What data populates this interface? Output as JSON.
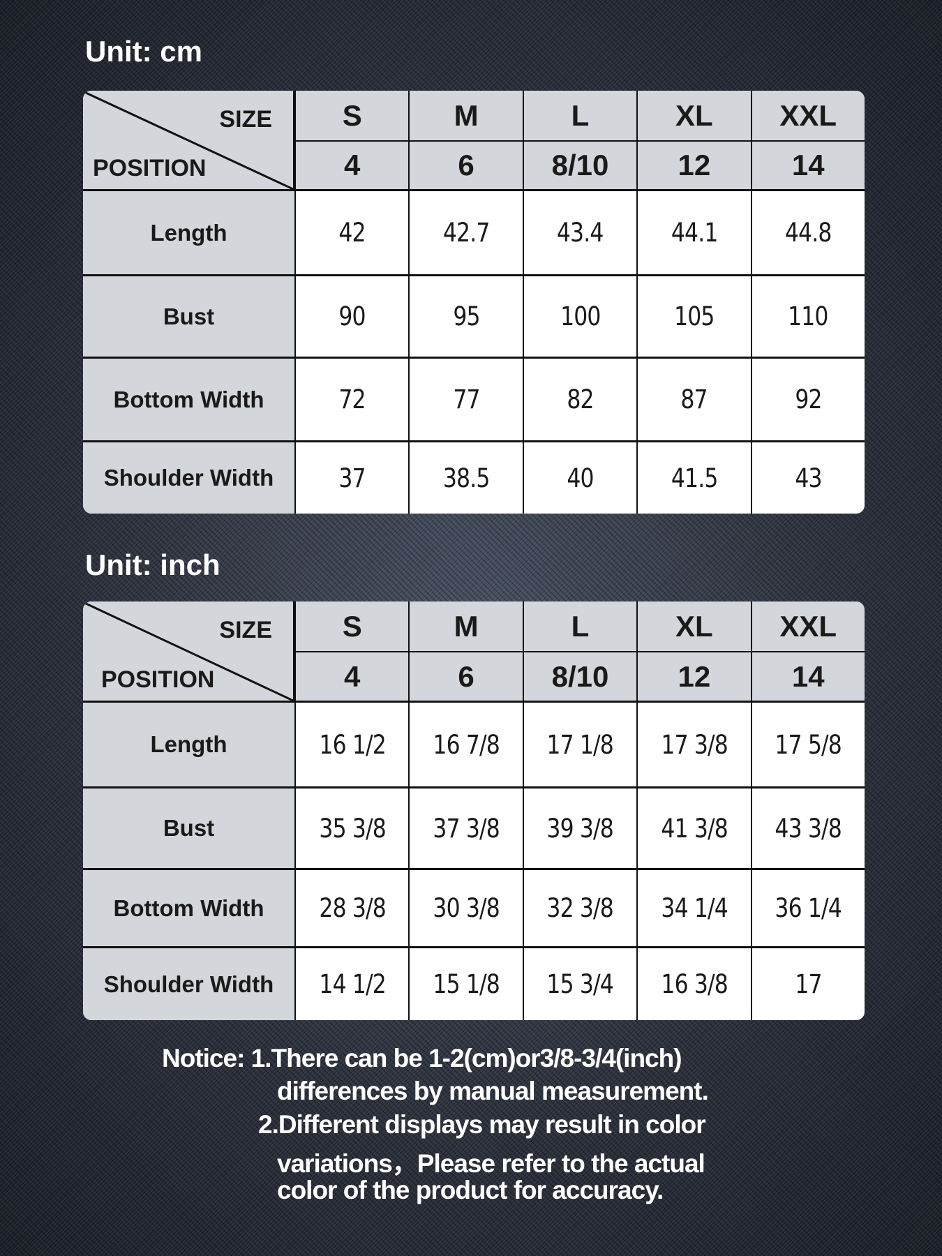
{
  "tables": [
    {
      "unit_label": "Unit: cm",
      "corner_size": "SIZE",
      "corner_position": "POSITION",
      "sizes": [
        "S",
        "M",
        "L",
        "XL",
        "XXL"
      ],
      "numeric_sizes": [
        "4",
        "6",
        "8/10",
        "12",
        "14"
      ],
      "rows": [
        {
          "label": "Length",
          "values": [
            "42",
            "42.7",
            "43.4",
            "44.1",
            "44.8"
          ]
        },
        {
          "label": "Bust",
          "values": [
            "90",
            "95",
            "100",
            "105",
            "110"
          ]
        },
        {
          "label": "Bottom Width",
          "values": [
            "72",
            "77",
            "82",
            "87",
            "92"
          ]
        },
        {
          "label": "Shoulder Width",
          "values": [
            "37",
            "38.5",
            "40",
            "41.5",
            "43"
          ]
        }
      ]
    },
    {
      "unit_label": "Unit: inch",
      "corner_size": "SIZE",
      "corner_position": "POSITION",
      "sizes": [
        "S",
        "M",
        "L",
        "XL",
        "XXL"
      ],
      "numeric_sizes": [
        "4",
        "6",
        "8/10",
        "12",
        "14"
      ],
      "rows": [
        {
          "label": "Length",
          "values": [
            "16 1/2",
            "16 7/8",
            "17 1/8",
            "17 3/8",
            "17 5/8"
          ]
        },
        {
          "label": "Bust",
          "values": [
            "35 3/8",
            "37 3/8",
            "39 3/8",
            "41 3/8",
            "43 3/8"
          ]
        },
        {
          "label": "Bottom Width",
          "values": [
            "28 3/8",
            "30 3/8",
            "32 3/8",
            "34 1/4",
            "36 1/4"
          ]
        },
        {
          "label": "Shoulder Width",
          "values": [
            "14 1/2",
            "15 1/8",
            "15 3/4",
            "16 3/8",
            "17"
          ]
        }
      ]
    }
  ],
  "notice": {
    "line1": "Notice: 1.There can be 1-2(cm)or3/8-3/4(inch)",
    "line2": "differences by manual measurement.",
    "line3": "2.Different displays may result in color",
    "line4": "variations，Please refer to the actual",
    "line5": "color of the product for accuracy."
  }
}
